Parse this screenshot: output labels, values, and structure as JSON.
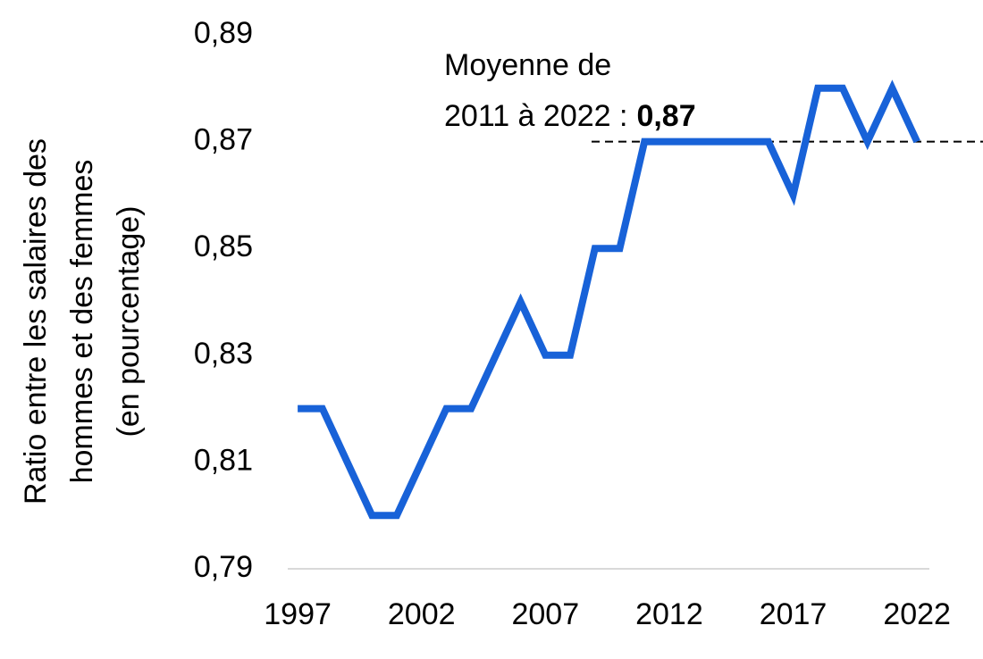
{
  "chart_data": {
    "type": "line",
    "y_label": [
      "Ratio entre les salaires des",
      "hommes et des femmes",
      "(en pourcentage)"
    ],
    "x": [
      1997,
      1998,
      1999,
      2000,
      2001,
      2002,
      2003,
      2004,
      2005,
      2006,
      2007,
      2008,
      2009,
      2010,
      2011,
      2012,
      2013,
      2014,
      2015,
      2016,
      2017,
      2018,
      2019,
      2020,
      2021,
      2022
    ],
    "values": [
      0.82,
      0.82,
      0.81,
      0.8,
      0.8,
      0.81,
      0.82,
      0.82,
      0.83,
      0.84,
      0.83,
      0.83,
      0.85,
      0.85,
      0.87,
      0.87,
      0.87,
      0.87,
      0.87,
      0.87,
      0.86,
      0.88,
      0.88,
      0.87,
      0.88,
      0.87
    ],
    "color": "#1862d8",
    "xlim": [
      1996.6,
      2022.5
    ],
    "xticks": [
      1997,
      2002,
      2007,
      2012,
      2017,
      2022
    ],
    "ylim": [
      0.79,
      0.89
    ],
    "yticks": [
      {
        "value": 0.79,
        "label": "0,79"
      },
      {
        "value": 0.81,
        "label": "0,81"
      },
      {
        "value": 0.83,
        "label": "0,83"
      },
      {
        "value": 0.85,
        "label": "0,85"
      },
      {
        "value": 0.87,
        "label": "0,87"
      },
      {
        "value": 0.89,
        "label": "0,89"
      }
    ],
    "grid": false,
    "average": {
      "lines": [
        "Moyenne de",
        "2011 à 2022 :"
      ],
      "value": 0.87,
      "value_label": "0,87"
    }
  }
}
